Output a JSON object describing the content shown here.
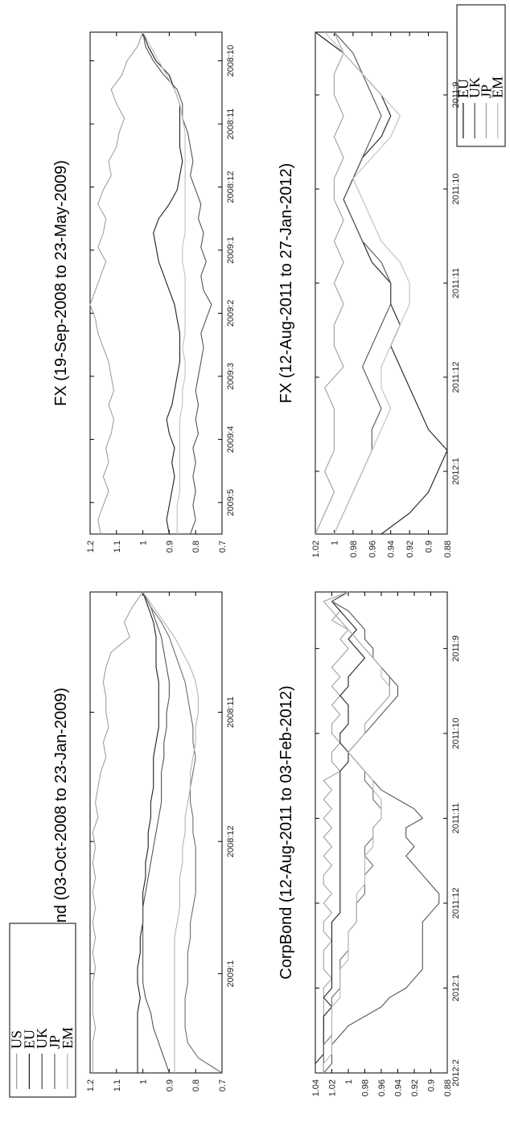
{
  "chart_data": [
    {
      "type": "line",
      "title": "CorpBond (03-Oct-2008 to 23-Jan-2009)",
      "ylim": [
        0.7,
        1.2
      ],
      "yticks": [
        "0.7",
        "0.8",
        "0.9",
        "1",
        "1.1",
        "1.2"
      ],
      "ytick_values": [
        0.7,
        0.8,
        0.9,
        1.0,
        1.1,
        1.2
      ],
      "xticks": [
        "2008:11",
        "2008:12",
        "2009:1"
      ],
      "xtick_positions": [
        4,
        8.3,
        12.7
      ],
      "x": [
        0,
        0.5,
        1,
        1.5,
        2,
        2.5,
        3,
        3.5,
        4,
        4.5,
        5,
        5.5,
        6,
        6.5,
        7,
        7.5,
        8,
        8.5,
        9,
        9.5,
        10,
        10.5,
        11,
        11.5,
        12,
        12.5,
        13,
        13.5,
        14,
        14.5,
        15,
        15.5,
        16
      ],
      "legend": [
        "US",
        "EU",
        "UK",
        "JP",
        "EM"
      ],
      "series": [
        {
          "name": "US",
          "color": "#a0a0a0",
          "values": [
            1.0,
            1.04,
            1.07,
            1.05,
            1.12,
            1.14,
            1.15,
            1.14,
            1.14,
            1.13,
            1.15,
            1.14,
            1.16,
            1.17,
            1.18,
            1.17,
            1.19,
            1.18,
            1.19,
            1.18,
            1.19,
            1.18,
            1.19,
            1.18,
            1.19,
            1.18,
            1.19,
            1.19,
            1.19,
            1.18,
            1.19,
            1.19,
            1.19
          ]
        },
        {
          "name": "EU",
          "color": "#202020",
          "values": [
            1.0,
            0.98,
            0.96,
            0.95,
            0.95,
            0.95,
            0.94,
            0.94,
            0.94,
            0.94,
            0.95,
            0.96,
            0.96,
            0.96,
            0.97,
            0.97,
            0.98,
            0.98,
            0.99,
            0.99,
            1.0,
            1.0,
            1.0,
            1.01,
            1.01,
            1.02,
            1.02,
            1.01,
            1.02,
            1.02,
            1.02,
            1.02,
            1.02
          ]
        },
        {
          "name": "UK",
          "color": "#555555",
          "values": [
            1.0,
            0.97,
            0.95,
            0.93,
            0.92,
            0.91,
            0.9,
            0.9,
            0.91,
            0.91,
            0.92,
            0.92,
            0.93,
            0.93,
            0.93,
            0.94,
            0.95,
            0.96,
            0.97,
            0.98,
            0.99,
            1.0,
            1.0,
            1.0,
            1.0,
            1.0,
            1.0,
            0.99,
            0.97,
            0.96,
            0.94,
            0.92,
            0.9
          ]
        },
        {
          "name": "JP",
          "color": "#6e6e6e",
          "values": [
            1.0,
            0.97,
            0.93,
            0.9,
            0.88,
            0.86,
            0.84,
            0.83,
            0.82,
            0.81,
            0.81,
            0.8,
            0.81,
            0.82,
            0.82,
            0.81,
            0.81,
            0.8,
            0.8,
            0.8,
            0.8,
            0.81,
            0.82,
            0.82,
            0.83,
            0.83,
            0.83,
            0.84,
            0.84,
            0.84,
            0.83,
            0.79,
            0.7
          ]
        },
        {
          "name": "EM",
          "color": "#b5b5b5",
          "values": [
            1.0,
            0.96,
            0.92,
            0.88,
            0.85,
            0.82,
            0.8,
            0.79,
            0.79,
            0.8,
            0.8,
            0.81,
            0.82,
            0.82,
            0.83,
            0.84,
            0.84,
            0.85,
            0.85,
            0.86,
            0.86,
            0.86,
            0.87,
            0.88,
            0.88,
            0.88,
            0.88,
            0.88,
            0.88,
            0.88,
            0.88,
            0.88,
            0.88
          ]
        }
      ]
    },
    {
      "type": "line",
      "title": "CorpBond (12-Aug-2011 to 03-Feb-2012)",
      "ylim": [
        0.88,
        1.04
      ],
      "yticks": [
        "0.88",
        "0.9",
        "0.92",
        "0.94",
        "0.96",
        "0.98",
        "1",
        "1.02",
        "1.04"
      ],
      "ytick_values": [
        0.88,
        0.9,
        0.92,
        0.94,
        0.96,
        0.98,
        1.0,
        1.02,
        1.04
      ],
      "xticks": [
        "2011:9",
        "2011:10",
        "2011:11",
        "2011:12",
        "2012:1",
        "2012:2"
      ],
      "xtick_positions": [
        3,
        7.5,
        12,
        16.5,
        21,
        25.5
      ],
      "x": [
        0,
        0.5,
        1,
        1.5,
        2,
        2.5,
        3,
        3.5,
        4,
        4.5,
        5,
        5.5,
        6,
        6.5,
        7,
        7.5,
        8,
        8.5,
        9,
        9.5,
        10,
        10.5,
        11,
        11.5,
        12,
        12.5,
        13,
        13.5,
        14,
        14.5,
        15,
        15.5,
        16,
        16.5,
        17,
        17.5,
        18,
        18.5,
        19,
        19.5,
        20,
        20.5,
        21,
        21.5,
        22,
        22.5,
        23,
        23.5,
        24,
        24.5,
        25,
        25.5
      ],
      "legend": [
        "US",
        "EU",
        "UK",
        "JP",
        "EM"
      ],
      "series": [
        {
          "name": "US",
          "color": "#a0a0a0",
          "values": [
            1.0,
            1.02,
            1.01,
            1.02,
            1.0,
            1.01,
            1.0,
            1.01,
            1.02,
            1.01,
            1.02,
            1.01,
            1.02,
            1.01,
            1.02,
            1.02,
            1.01,
            1.02,
            1.02,
            1.01,
            1.03,
            1.02,
            1.03,
            1.02,
            1.03,
            1.02,
            1.03,
            1.02,
            1.03,
            1.02,
            1.03,
            1.03,
            1.02,
            1.03,
            1.02,
            1.03,
            1.03,
            1.02,
            1.03,
            1.03,
            1.03,
            1.02,
            1.03,
            1.03,
            1.03,
            1.03,
            1.03,
            1.03,
            1.03,
            1.03,
            1.03,
            1.03
          ]
        },
        {
          "name": "EU",
          "color": "#202020",
          "values": [
            1.0,
            1.02,
            1.01,
            1.0,
            0.99,
            1.0,
            0.99,
            0.98,
            0.99,
            1.0,
            1.0,
            1.01,
            1.0,
            1.0,
            1.0,
            1.01,
            1.01,
            1.0,
            1.0,
            1.01,
            1.01,
            1.01,
            1.01,
            1.01,
            1.01,
            1.01,
            1.01,
            1.01,
            1.01,
            1.01,
            1.01,
            1.01,
            1.01,
            1.01,
            1.01,
            1.02,
            1.02,
            1.02,
            1.02,
            1.02,
            1.02,
            1.02,
            1.02,
            1.03,
            1.02,
            1.03,
            1.03,
            1.03,
            1.03,
            1.03,
            1.04,
            1.04
          ]
        },
        {
          "name": "UK",
          "color": "#555555",
          "values": [
            1.0,
            1.02,
            1.0,
            0.99,
            0.98,
            0.98,
            0.97,
            0.97,
            0.96,
            0.95,
            0.94,
            0.94,
            0.95,
            0.96,
            0.97,
            0.98,
            0.99,
            1.0,
            0.99,
            0.98,
            0.97,
            0.96,
            0.94,
            0.92,
            0.91,
            0.93,
            0.93,
            0.92,
            0.93,
            0.92,
            0.91,
            0.9,
            0.89,
            0.89,
            0.9,
            0.91,
            0.91,
            0.91,
            0.91,
            0.91,
            0.91,
            0.92,
            0.93,
            0.95,
            0.96,
            0.98,
            1.0,
            1.01,
            1.02,
            1.02,
            1.02,
            1.03
          ]
        },
        {
          "name": "JP",
          "color": "#6e6e6e",
          "values": [
            1.0,
            1.03,
            1.02,
            1.01,
            1.0,
            0.99,
            0.98,
            0.97,
            0.96,
            0.95,
            0.95,
            0.95,
            0.96,
            0.97,
            0.98,
            0.98,
            0.99,
            1.0,
            0.99,
            0.98,
            0.98,
            0.97,
            0.97,
            0.96,
            0.96,
            0.97,
            0.97,
            0.98,
            0.98,
            0.97,
            0.98,
            0.98,
            0.98,
            0.99,
            0.99,
            0.99,
            1.0,
            1.0,
            1.0,
            1.01,
            1.01,
            1.01,
            1.01,
            1.02,
            1.02,
            1.02,
            1.02,
            1.02,
            1.03,
            1.03,
            1.03,
            1.03
          ]
        },
        {
          "name": "EM",
          "color": "#b5b5b5",
          "values": [
            1.0,
            1.03,
            1.02,
            1.01,
            1.0,
            0.99,
            0.98,
            0.97,
            0.96,
            0.96,
            0.95,
            0.95,
            0.96,
            0.97,
            0.98,
            0.98,
            0.99,
            1.0,
            0.99,
            0.98,
            0.97,
            0.97,
            0.96,
            0.96,
            0.96,
            0.97,
            0.97,
            0.97,
            0.98,
            0.98,
            0.98,
            0.98,
            0.99,
            0.99,
            0.99,
            0.99,
            1.0,
            1.0,
            1.0,
            1.0,
            1.01,
            1.01,
            1.01,
            1.01,
            1.02,
            1.02,
            1.02,
            1.02,
            1.02,
            1.02,
            1.03,
            1.03
          ]
        }
      ]
    },
    {
      "type": "line",
      "title": "FX (19-Sep-2008 to 23-May-2009)",
      "ylim": [
        0.7,
        1.2
      ],
      "yticks": [
        "0.7",
        "0.8",
        "0.9",
        "1",
        "1.1",
        "1.2"
      ],
      "ytick_values": [
        0.7,
        0.8,
        0.9,
        1.0,
        1.1,
        1.2
      ],
      "xticks": [
        "2008:10",
        "2008:11",
        "2008:12",
        "2009:1",
        "2009:2",
        "2009:3",
        "2009:4",
        "2009:5"
      ],
      "xtick_positions": [
        2,
        6.4,
        10.8,
        15.2,
        19.6,
        24,
        28.4,
        32.8
      ],
      "x": [
        0,
        1,
        2,
        3,
        4,
        5,
        6,
        7,
        8,
        9,
        10,
        11,
        12,
        13,
        14,
        15,
        16,
        17,
        18,
        19,
        20,
        21,
        22,
        23,
        24,
        25,
        26,
        27,
        28,
        29,
        30,
        31,
        32,
        33,
        34,
        35
      ],
      "legend": [
        "EU",
        "UK",
        "JP",
        "EM"
      ],
      "series": [
        {
          "name": "EU",
          "color": "#202020",
          "values": [
            1.0,
            0.98,
            0.95,
            0.9,
            0.88,
            0.86,
            0.86,
            0.86,
            0.86,
            0.85,
            0.86,
            0.87,
            0.9,
            0.94,
            0.96,
            0.95,
            0.94,
            0.92,
            0.9,
            0.88,
            0.87,
            0.86,
            0.86,
            0.86,
            0.87,
            0.88,
            0.89,
            0.91,
            0.9,
            0.88,
            0.89,
            0.88,
            0.89,
            0.9,
            0.91,
            0.9
          ]
        },
        {
          "name": "UK",
          "color": "#555555",
          "values": [
            1.0,
            0.99,
            0.96,
            0.92,
            0.87,
            0.85,
            0.85,
            0.83,
            0.82,
            0.81,
            0.82,
            0.8,
            0.78,
            0.79,
            0.77,
            0.78,
            0.76,
            0.78,
            0.77,
            0.74,
            0.76,
            0.78,
            0.77,
            0.78,
            0.79,
            0.8,
            0.79,
            0.8,
            0.79,
            0.81,
            0.8,
            0.81,
            0.8,
            0.81,
            0.8,
            0.82
          ]
        },
        {
          "name": "JP",
          "color": "#a0a0a0",
          "values": [
            1.0,
            1.02,
            1.06,
            1.08,
            1.12,
            1.1,
            1.07,
            1.09,
            1.1,
            1.13,
            1.12,
            1.15,
            1.17,
            1.14,
            1.15,
            1.17,
            1.14,
            1.16,
            1.18,
            1.2,
            1.18,
            1.17,
            1.15,
            1.13,
            1.12,
            1.11,
            1.13,
            1.11,
            1.12,
            1.14,
            1.13,
            1.15,
            1.13,
            1.15,
            1.17,
            1.16
          ]
        },
        {
          "name": "EM",
          "color": "#c0c0c0",
          "values": [
            1.0,
            0.97,
            0.94,
            0.91,
            0.88,
            0.86,
            0.85,
            0.84,
            0.84,
            0.84,
            0.84,
            0.84,
            0.84,
            0.84,
            0.84,
            0.85,
            0.85,
            0.84,
            0.84,
            0.84,
            0.84,
            0.84,
            0.85,
            0.84,
            0.84,
            0.85,
            0.85,
            0.86,
            0.86,
            0.86,
            0.86,
            0.86,
            0.86,
            0.87,
            0.87,
            0.87
          ]
        }
      ]
    },
    {
      "type": "line",
      "title": "FX (12-Aug-2011 to 27-Jan-2012)",
      "ylim": [
        0.88,
        1.02
      ],
      "yticks": [
        "0.88",
        "0.9",
        "0.92",
        "0.94",
        "0.96",
        "0.98",
        "1",
        "1.02"
      ],
      "ytick_values": [
        0.88,
        0.9,
        0.92,
        0.94,
        0.96,
        0.98,
        1.0,
        1.02
      ],
      "xticks": [
        "2011:9",
        "2011:10",
        "2011:11",
        "2011:12",
        "2012:1"
      ],
      "xtick_positions": [
        3,
        7.5,
        12,
        16.5,
        21
      ],
      "x": [
        0,
        1,
        2,
        3,
        4,
        5,
        6,
        7,
        8,
        9,
        10,
        11,
        12,
        13,
        14,
        15,
        16,
        17,
        18,
        19,
        20,
        21,
        22,
        23,
        24
      ],
      "legend": [
        "EU",
        "UK",
        "JP",
        "EM"
      ],
      "series": [
        {
          "name": "EU",
          "color": "#202020",
          "values": [
            1.02,
            0.99,
            0.97,
            0.95,
            0.94,
            0.95,
            0.97,
            0.98,
            0.99,
            0.98,
            0.97,
            0.96,
            0.94,
            0.94,
            0.93,
            0.94,
            0.93,
            0.92,
            0.91,
            0.9,
            0.88,
            0.89,
            0.9,
            0.92,
            0.95
          ]
        },
        {
          "name": "UK",
          "color": "#555555",
          "values": [
            1.0,
            0.98,
            0.97,
            0.96,
            0.95,
            0.96,
            0.97,
            0.98,
            0.99,
            0.98,
            0.97,
            0.95,
            0.94,
            0.94,
            0.95,
            0.96,
            0.97,
            0.96,
            0.95,
            0.96,
            0.96,
            0.97,
            0.98,
            0.99,
            1.0
          ]
        },
        {
          "name": "JP",
          "color": "#a0a0a0",
          "values": [
            1.0,
            0.99,
            1.0,
            1.0,
            0.99,
            1.0,
            0.99,
            1.0,
            1.0,
            0.99,
            1.0,
            0.99,
            1.0,
            0.99,
            1.0,
            1.0,
            0.99,
            1.01,
            1.0,
            1.0,
            1.0,
            1.01,
            1.0,
            1.01,
            1.02
          ]
        },
        {
          "name": "EM",
          "color": "#c0c0c0",
          "values": [
            1.01,
            0.99,
            0.97,
            0.95,
            0.93,
            0.94,
            0.96,
            0.98,
            0.97,
            0.96,
            0.95,
            0.93,
            0.92,
            0.92,
            0.93,
            0.94,
            0.95,
            0.95,
            0.94,
            0.95,
            0.96,
            0.97,
            0.98,
            0.99,
            1.0
          ]
        }
      ]
    }
  ]
}
